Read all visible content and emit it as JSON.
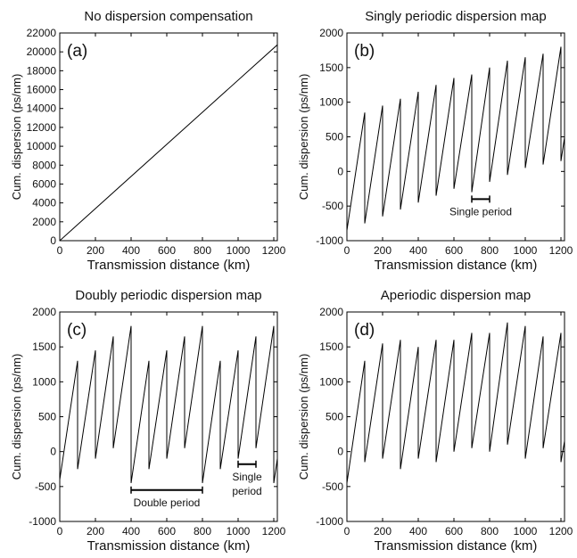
{
  "chart_data": [
    {
      "type": "line",
      "panel_label": "(a)",
      "title": "No dispersion compensation",
      "xlabel": "Transmission distance (km)",
      "ylabel": "Cum. dispersion (ps/nm)",
      "xlim": [
        0,
        1220
      ],
      "ylim": [
        0,
        22000
      ],
      "xticks": [
        0,
        200,
        400,
        600,
        800,
        1000,
        1200
      ],
      "yticks": [
        0,
        2000,
        4000,
        6000,
        8000,
        10000,
        12000,
        14000,
        16000,
        18000,
        20000,
        22000
      ],
      "series": [
        {
          "x": [
            0,
            1220
          ],
          "y": [
            0,
            20740
          ]
        }
      ],
      "annotations": []
    },
    {
      "type": "line",
      "panel_label": "(b)",
      "title": "Singly periodic dispersion map",
      "xlabel": "Transmission distance (km)",
      "ylabel": "Cum. dispersion (ps/nm)",
      "xlim": [
        0,
        1220
      ],
      "ylim": [
        -1000,
        2000
      ],
      "xticks": [
        0,
        200,
        400,
        600,
        800,
        1000,
        1200
      ],
      "yticks": [
        -1000,
        -500,
        0,
        500,
        1000,
        1500,
        2000
      ],
      "series": [
        {
          "x": [
            0,
            100,
            100,
            200,
            200,
            300,
            300,
            400,
            400,
            500,
            500,
            600,
            600,
            700,
            700,
            800,
            800,
            900,
            900,
            1000,
            1000,
            1100,
            1100,
            1200,
            1200,
            1220
          ],
          "y": [
            -850,
            850,
            -750,
            950,
            -650,
            1050,
            -550,
            1150,
            -450,
            1250,
            -350,
            1350,
            -250,
            1400,
            -300,
            1500,
            -150,
            1600,
            -50,
            1650,
            50,
            1700,
            100,
            1800,
            150,
            490
          ]
        }
      ],
      "annotations": [
        {
          "text": "Single period",
          "x_start": 700,
          "x_end": 800,
          "y": -400
        }
      ]
    },
    {
      "type": "line",
      "panel_label": "(c)",
      "title": "Doubly periodic dispersion map",
      "xlabel": "Transmission distance (km)",
      "ylabel": "Cum. dispersion (ps/nm)",
      "xlim": [
        0,
        1220
      ],
      "ylim": [
        -1000,
        2000
      ],
      "xticks": [
        0,
        200,
        400,
        600,
        800,
        1000,
        1200
      ],
      "yticks": [
        -1000,
        -500,
        0,
        500,
        1000,
        1500,
        2000
      ],
      "series": [
        {
          "x": [
            0,
            100,
            100,
            200,
            200,
            300,
            300,
            400,
            400,
            500,
            500,
            600,
            600,
            700,
            700,
            800,
            800,
            900,
            900,
            1000,
            1000,
            1100,
            1100,
            1200,
            1200,
            1220
          ],
          "y": [
            -400,
            1300,
            -250,
            1450,
            -100,
            1650,
            50,
            1800,
            -450,
            1300,
            -250,
            1450,
            -100,
            1650,
            50,
            1800,
            -450,
            1300,
            -250,
            1450,
            -100,
            1650,
            50,
            1800,
            -450,
            -100
          ]
        }
      ],
      "annotations": [
        {
          "text": "Double period",
          "x_start": 400,
          "x_end": 800,
          "y": -550
        },
        {
          "text": "Single",
          "text2": "period",
          "x_start": 1000,
          "x_end": 1100,
          "y": -180
        }
      ]
    },
    {
      "type": "line",
      "panel_label": "(d)",
      "title": "Aperiodic dispersion map",
      "xlabel": "Transmission distance (km)",
      "ylabel": "Cum. dispersion (ps/nm)",
      "xlim": [
        0,
        1220
      ],
      "ylim": [
        -1000,
        2000
      ],
      "xticks": [
        0,
        200,
        400,
        600,
        800,
        1000,
        1200
      ],
      "yticks": [
        -1000,
        -500,
        0,
        500,
        1000,
        1500,
        2000
      ],
      "series": [
        {
          "x": [
            0,
            100,
            100,
            200,
            200,
            300,
            300,
            400,
            400,
            500,
            500,
            600,
            600,
            700,
            700,
            800,
            800,
            900,
            900,
            1000,
            1000,
            1100,
            1100,
            1200,
            1200,
            1220
          ],
          "y": [
            -450,
            1300,
            -150,
            1550,
            -100,
            1600,
            -250,
            1500,
            -100,
            1600,
            -150,
            1600,
            0,
            1700,
            50,
            1700,
            0,
            1850,
            100,
            1800,
            -100,
            1650,
            50,
            1700,
            -150,
            150
          ]
        }
      ],
      "annotations": []
    }
  ]
}
